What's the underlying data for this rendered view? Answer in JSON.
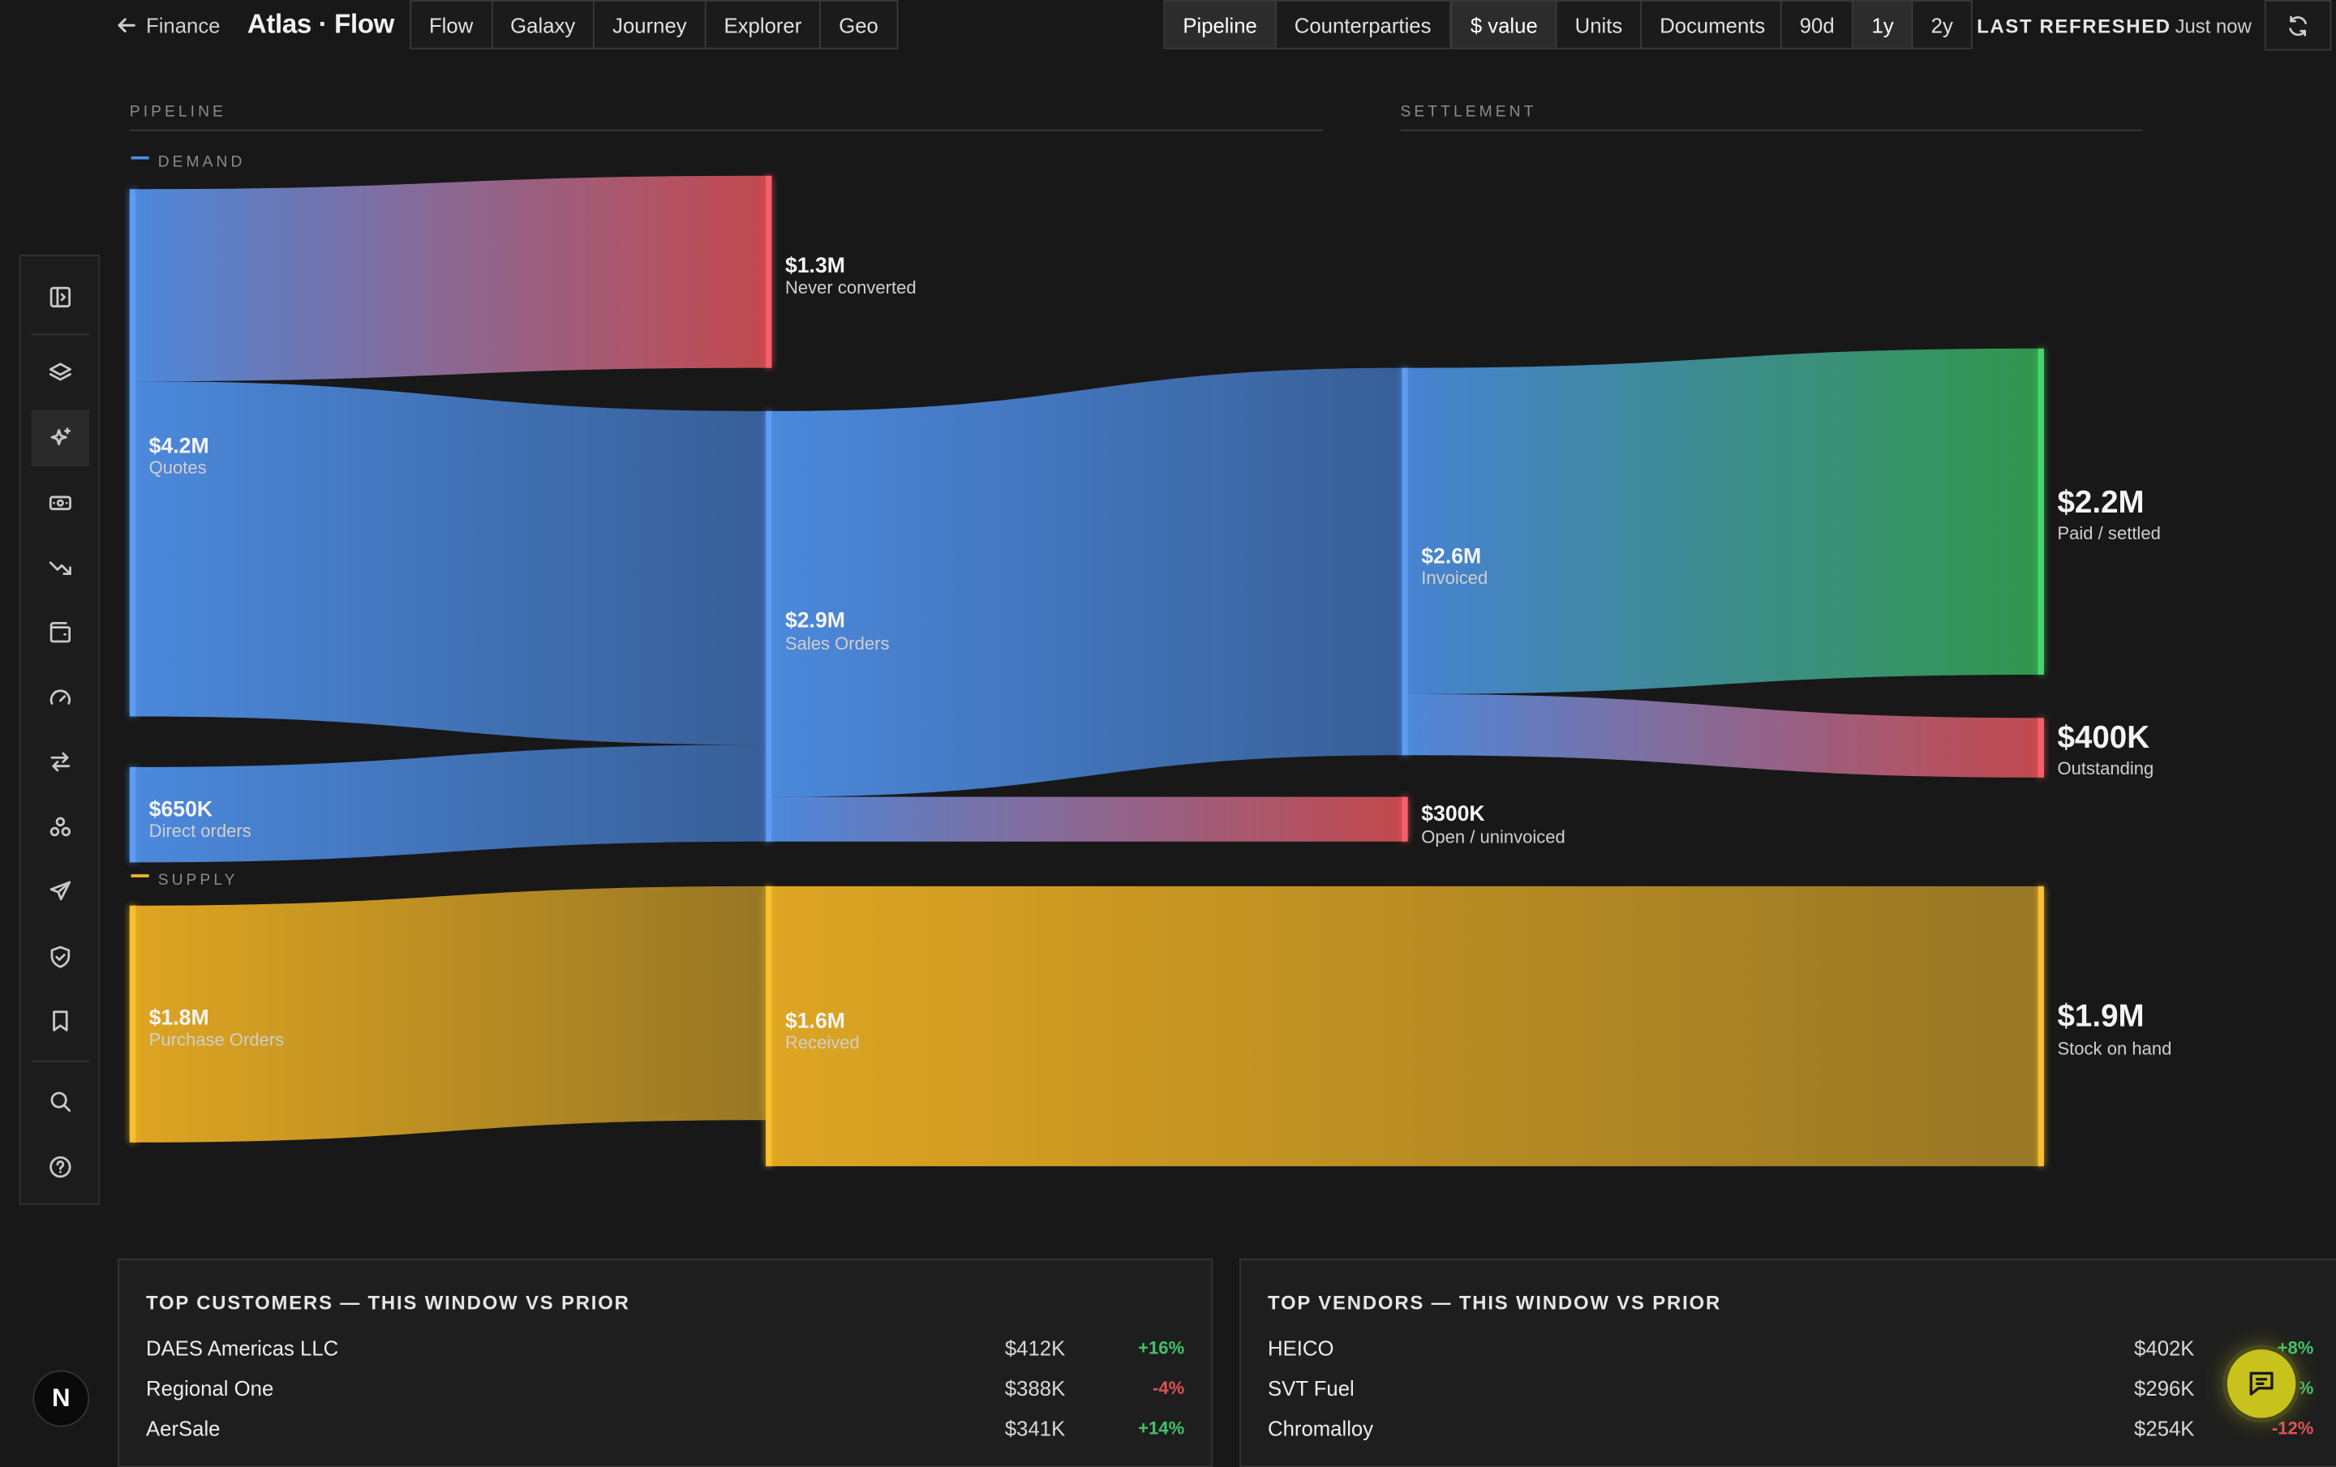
{
  "topbar": {
    "back_label": "Finance",
    "brand": "Atlas · Flow",
    "view_tabs": [
      "Flow",
      "Galaxy",
      "Journey",
      "Explorer",
      "Geo"
    ],
    "mode_tabs": [
      "Pipeline",
      "Counterparties"
    ],
    "mode_active": "Pipeline",
    "metric_tabs": [
      "$ value",
      "Units",
      "Documents"
    ],
    "metric_active": "$ value",
    "range_tabs": [
      "90d",
      "1y",
      "2y"
    ],
    "range_active": "1y",
    "refresh_label": "LAST REFRESHED",
    "refresh_value": "Just now"
  },
  "rail_icons": [
    "sidebar-toggle-icon",
    "layers-icon",
    "sparkles-icon",
    "money-icon",
    "trending-down-icon",
    "wallet-icon",
    "gauge-icon",
    "swap-icon",
    "network-icon",
    "plane-icon",
    "shield-check-icon",
    "bookmark-icon",
    "search-icon",
    "help-icon"
  ],
  "rail_active": "sparkles-icon",
  "sections": {
    "pipeline": "PIPELINE",
    "settlement": "SETTLEMENT",
    "demand": "DEMAND",
    "supply": "SUPPLY"
  },
  "colors": {
    "demand": "#4f8fe6",
    "supply": "#f0b628",
    "settled": "#36c35f",
    "loss": "#f0505a"
  },
  "nodes": {
    "quotes": {
      "value": "$4.2M",
      "label": "Quotes"
    },
    "never_converted": {
      "value": "$1.3M",
      "label": "Never converted"
    },
    "direct_orders": {
      "value": "$650K",
      "label": "Direct orders"
    },
    "sales_orders": {
      "value": "$2.9M",
      "label": "Sales Orders"
    },
    "invoiced": {
      "value": "$2.6M",
      "label": "Invoiced"
    },
    "open_uninvoiced": {
      "value": "$300K",
      "label": "Open / uninvoiced"
    },
    "paid_settled": {
      "value": "$2.2M",
      "label": "Paid / settled"
    },
    "outstanding": {
      "value": "$400K",
      "label": "Outstanding"
    },
    "purchase_orders": {
      "value": "$1.8M",
      "label": "Purchase Orders"
    },
    "received": {
      "value": "$1.6M",
      "label": "Received"
    },
    "stock_on_hand": {
      "value": "$1.9M",
      "label": "Stock on hand"
    }
  },
  "top_customers": {
    "title": "TOP CUSTOMERS — THIS WINDOW VS PRIOR",
    "rows": [
      {
        "name": "DAES Americas LLC",
        "amount": "$412K",
        "change": "+16%",
        "dir": "pos"
      },
      {
        "name": "Regional One",
        "amount": "$388K",
        "change": "-4%",
        "dir": "neg"
      },
      {
        "name": "AerSale",
        "amount": "$341K",
        "change": "+14%",
        "dir": "pos"
      }
    ]
  },
  "top_vendors": {
    "title": "TOP VENDORS — THIS WINDOW VS PRIOR",
    "rows": [
      {
        "name": "HEICO",
        "amount": "$402K",
        "change": "+8%",
        "dir": "pos"
      },
      {
        "name": "SVT Fuel",
        "amount": "$296K",
        "change": "+1%",
        "dir": "pos"
      },
      {
        "name": "Chromalloy",
        "amount": "$254K",
        "change": "-12%",
        "dir": "neg"
      }
    ]
  },
  "avatar_initial": "N"
}
